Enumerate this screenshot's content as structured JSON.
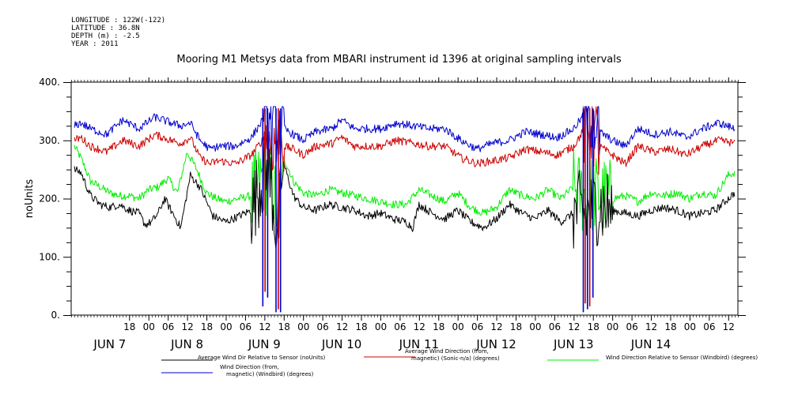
{
  "metadata_lines": [
    "LONGITUDE : 122W(-122)",
    "LATITUDE : 36.8N",
    "DEPTH (m) : -2.5",
    "YEAR : 2011"
  ],
  "chart_data": {
    "type": "line",
    "title": "Mooring M1 Metsys data from MBARI instrument id 1396 at original sampling intervals",
    "ylabel": "noUnits",
    "xlabel": "",
    "ylim": [
      0,
      400
    ],
    "yticks": [
      0,
      100,
      200,
      300,
      400
    ],
    "ytick_labels": [
      "0.",
      "100.",
      "200.",
      "300.",
      "400."
    ],
    "xlim_hours": [
      144,
      351
    ],
    "hour_ticks": [
      {
        "hour": 162,
        "label": "18"
      },
      {
        "hour": 168,
        "label": "00"
      },
      {
        "hour": 174,
        "label": "06"
      },
      {
        "hour": 180,
        "label": "12"
      },
      {
        "hour": 186,
        "label": "18"
      },
      {
        "hour": 192,
        "label": "00"
      },
      {
        "hour": 198,
        "label": "06"
      },
      {
        "hour": 204,
        "label": "12"
      },
      {
        "hour": 210,
        "label": "18"
      },
      {
        "hour": 216,
        "label": "00"
      },
      {
        "hour": 222,
        "label": "06"
      },
      {
        "hour": 228,
        "label": "12"
      },
      {
        "hour": 234,
        "label": "18"
      },
      {
        "hour": 240,
        "label": "00"
      },
      {
        "hour": 246,
        "label": "06"
      },
      {
        "hour": 252,
        "label": "12"
      },
      {
        "hour": 258,
        "label": "18"
      },
      {
        "hour": 264,
        "label": "00"
      },
      {
        "hour": 270,
        "label": "06"
      },
      {
        "hour": 276,
        "label": "12"
      },
      {
        "hour": 282,
        "label": "18"
      },
      {
        "hour": 288,
        "label": "00"
      },
      {
        "hour": 294,
        "label": "06"
      },
      {
        "hour": 300,
        "label": "12"
      },
      {
        "hour": 306,
        "label": "18"
      },
      {
        "hour": 312,
        "label": "00"
      },
      {
        "hour": 318,
        "label": "06"
      },
      {
        "hour": 324,
        "label": "12"
      },
      {
        "hour": 330,
        "label": "18"
      },
      {
        "hour": 336,
        "label": "00"
      },
      {
        "hour": 342,
        "label": "06"
      },
      {
        "hour": 348,
        "label": "12"
      }
    ],
    "day_labels": [
      {
        "hour": 156,
        "label": "JUN  7"
      },
      {
        "hour": 180,
        "label": "JUN  8"
      },
      {
        "hour": 204,
        "label": "JUN  9"
      },
      {
        "hour": 228,
        "label": "JUN 10"
      },
      {
        "hour": 252,
        "label": "JUN 11"
      },
      {
        "hour": 276,
        "label": "JUN 12"
      },
      {
        "hour": 300,
        "label": "JUN 13"
      },
      {
        "hour": 324,
        "label": "JUN 14"
      }
    ],
    "series": [
      {
        "name": "Average Wind Dir Relative to Sensor (noUnits)",
        "color": "#000000",
        "x": [
          145,
          147,
          150,
          153,
          156,
          159,
          162,
          165,
          167,
          169,
          171,
          173,
          175,
          178,
          181,
          184,
          186,
          188,
          192,
          196,
          200,
          204,
          206,
          208,
          210,
          213,
          216,
          220,
          224,
          228,
          232,
          236,
          240,
          244,
          248,
          250,
          252,
          256,
          260,
          264,
          268,
          270,
          272,
          276,
          280,
          284,
          288,
          292,
          296,
          300,
          302,
          304,
          306,
          308,
          312,
          316,
          320,
          324,
          328,
          332,
          336,
          340,
          344,
          348,
          350
        ],
        "y": [
          250,
          245,
          205,
          190,
          185,
          190,
          180,
          175,
          155,
          160,
          175,
          200,
          180,
          150,
          240,
          220,
          195,
          170,
          160,
          170,
          180,
          250,
          230,
          130,
          260,
          205,
          185,
          180,
          190,
          185,
          180,
          170,
          175,
          165,
          160,
          150,
          190,
          175,
          165,
          180,
          160,
          155,
          150,
          165,
          190,
          175,
          165,
          180,
          160,
          175,
          180,
          170,
          185,
          190,
          180,
          175,
          170,
          180,
          185,
          180,
          170,
          175,
          180,
          200,
          210
        ],
        "spikes": [
          {
            "from": 200,
            "to": 209,
            "amp": 70
          },
          {
            "from": 300,
            "to": 312,
            "amp": 70
          }
        ]
      },
      {
        "name": "Average Wind Direction (from, magnetic) (Sonic-n/a) (degrees)",
        "color": "#cc0000",
        "x": [
          145,
          147,
          150,
          155,
          160,
          165,
          170,
          175,
          178,
          181,
          184,
          187,
          190,
          195,
          200,
          204,
          206,
          208,
          210,
          213,
          216,
          220,
          225,
          228,
          232,
          236,
          240,
          245,
          250,
          255,
          260,
          265,
          270,
          275,
          280,
          285,
          290,
          295,
          300,
          304,
          306,
          308,
          312,
          316,
          320,
          325,
          330,
          335,
          340,
          345,
          350
        ],
        "y": [
          300,
          305,
          290,
          280,
          300,
          290,
          310,
          300,
          295,
          305,
          270,
          260,
          265,
          260,
          275,
          305,
          290,
          300,
          290,
          285,
          275,
          290,
          295,
          305,
          290,
          290,
          290,
          300,
          295,
          290,
          290,
          270,
          260,
          265,
          270,
          285,
          280,
          275,
          290,
          325,
          320,
          290,
          275,
          260,
          290,
          280,
          285,
          275,
          290,
          300,
          295
        ],
        "spikes": [
          {
            "from": 204,
            "to": 210,
            "amp": 55
          },
          {
            "from": 303,
            "to": 308,
            "amp": 70
          }
        ]
      },
      {
        "name": "Wind Direction Relative to Sensor (Windbird) (degrees)",
        "color": "#00ee00",
        "x": [
          145,
          147,
          150,
          153,
          156,
          159,
          162,
          165,
          168,
          171,
          174,
          177,
          180,
          183,
          186,
          189,
          192,
          196,
          200,
          204,
          206,
          208,
          210,
          213,
          216,
          220,
          224,
          228,
          232,
          236,
          240,
          244,
          248,
          252,
          256,
          260,
          264,
          268,
          272,
          276,
          280,
          284,
          288,
          292,
          296,
          300,
          302,
          304,
          306,
          308,
          312,
          316,
          320,
          324,
          328,
          332,
          336,
          340,
          344,
          348,
          350
        ],
        "y": [
          290,
          270,
          230,
          220,
          210,
          205,
          205,
          200,
          215,
          220,
          235,
          210,
          280,
          250,
          210,
          200,
          195,
          200,
          205,
          240,
          230,
          180,
          270,
          230,
          210,
          205,
          215,
          210,
          205,
          200,
          195,
          190,
          190,
          215,
          205,
          195,
          210,
          185,
          175,
          185,
          215,
          205,
          200,
          215,
          200,
          220,
          210,
          200,
          210,
          205,
          200,
          205,
          195,
          210,
          205,
          210,
          200,
          210,
          205,
          240,
          245
        ],
        "spikes": [
          {
            "from": 200,
            "to": 209,
            "amp": 70
          },
          {
            "from": 300,
            "to": 312,
            "amp": 70
          }
        ]
      },
      {
        "name": "Wind Direction (from, magnetic) (Windbird) (degrees)",
        "color": "#0000cc",
        "x": [
          145,
          147,
          150,
          155,
          160,
          165,
          170,
          175,
          178,
          181,
          184,
          187,
          190,
          195,
          200,
          204,
          206,
          208,
          210,
          213,
          216,
          220,
          225,
          228,
          232,
          236,
          240,
          245,
          250,
          255,
          260,
          265,
          270,
          275,
          280,
          285,
          290,
          295,
          300,
          304,
          306,
          308,
          312,
          316,
          320,
          325,
          330,
          335,
          340,
          345,
          350
        ],
        "y": [
          325,
          330,
          320,
          310,
          335,
          320,
          340,
          330,
          325,
          330,
          300,
          285,
          290,
          290,
          305,
          340,
          320,
          330,
          320,
          310,
          300,
          315,
          320,
          335,
          320,
          320,
          320,
          330,
          325,
          320,
          320,
          300,
          285,
          295,
          300,
          315,
          310,
          305,
          320,
          350,
          345,
          315,
          300,
          290,
          320,
          310,
          315,
          305,
          320,
          330,
          320
        ],
        "spikes": [
          {
            "from": 204,
            "to": 210,
            "amp": 70
          },
          {
            "from": 303,
            "to": 308,
            "amp": 70
          }
        ]
      }
    ],
    "drops": [
      {
        "hour": 203.5,
        "y": 15,
        "color": "#0000cc"
      },
      {
        "hour": 204.2,
        "y": 40,
        "color": "#cc0000"
      },
      {
        "hour": 205.0,
        "y": 30,
        "color": "#0000cc"
      },
      {
        "hour": 207.6,
        "y": 5,
        "color": "#0000cc"
      },
      {
        "hour": 208.3,
        "y": 10,
        "color": "#cc0000"
      },
      {
        "hour": 209.0,
        "y": 5,
        "color": "#0000cc"
      },
      {
        "hour": 303.0,
        "y": 5,
        "color": "#0000cc"
      },
      {
        "hour": 303.6,
        "y": 20,
        "color": "#cc0000"
      },
      {
        "hour": 304.3,
        "y": 10,
        "color": "#0000cc"
      },
      {
        "hour": 305.0,
        "y": 15,
        "color": "#cc0000"
      },
      {
        "hour": 306.0,
        "y": 30,
        "color": "#0000cc"
      }
    ],
    "legend": [
      {
        "color": "#000000",
        "lines": [
          "Average Wind Dir Relative to Sensor (noUnits)"
        ]
      },
      {
        "color": "#cc0000",
        "lines": [
          "Average Wind Direction (from,",
          "magnetic) (Sonic-n/a) (degrees)"
        ]
      },
      {
        "color": "#00ee00",
        "lines": [
          "Wind Direction Relative to Sensor (Windbird) (degrees)"
        ]
      },
      {
        "color": "#0000cc",
        "lines": [
          "Wind Direction (from,",
          "magnetic) (Windbird) (degrees)"
        ]
      }
    ]
  }
}
